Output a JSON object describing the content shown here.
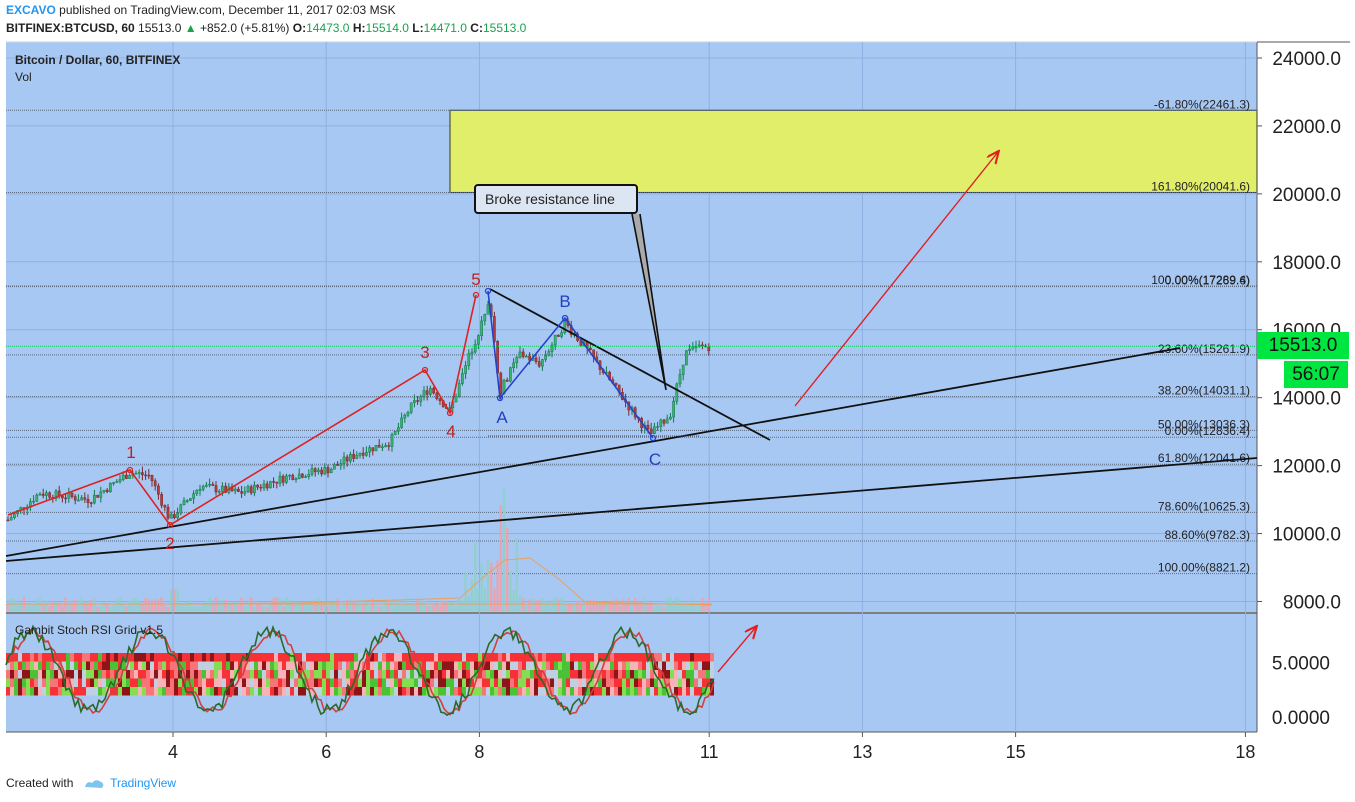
{
  "header": {
    "author": "EXCAVO",
    "published": "published on TradingView.com, December 11, 2017 02:03 MSK",
    "symbol": "BITFINEX:BTCUSD, 60",
    "last": "15513.0",
    "change": "+852.0 (+5.81%)",
    "o_label": "O:",
    "o": "14473.0",
    "h_label": "H:",
    "h": "15514.0",
    "l_label": "L:",
    "l": "14471.0",
    "c_label": "C:",
    "c": "15513.0"
  },
  "legend": {
    "title": "Bitcoin / Dollar, 60, BITFINEX",
    "vol": "Vol"
  },
  "indicator": {
    "name": "Gambit Stoch RSI Grid v1.5",
    "ticks": [
      "5.0000",
      "0.0000"
    ]
  },
  "footer": {
    "created": "Created with",
    "brand": "TradingView"
  },
  "price_badge": "15513.0",
  "time_badge": "56:07",
  "callout": "Broke resistance line",
  "colors": {
    "bg": "#a8c8f4",
    "up": "#26a69a",
    "down": "#ef5350",
    "accent": "#00e640",
    "zone": "#e0ee6a",
    "wave": "#dd2222",
    "abc": "#2244cc"
  },
  "chart_data": {
    "type": "candlestick",
    "x_ticks": [
      "4",
      "6",
      "8",
      "11",
      "13",
      "15",
      "18"
    ],
    "y_ticks": [
      "24000.0",
      "22000.0",
      "20000.0",
      "18000.0",
      "16000.0",
      "14000.0",
      "12000.0",
      "10000.0",
      "8000.0"
    ],
    "ylim": [
      7700,
      24300
    ],
    "fib_levels": [
      {
        "label": "-61.80%(22461.3)",
        "price": 22461.3
      },
      {
        "label": "161.80%(20041.6)",
        "price": 20041.6
      },
      {
        "label": "100.00%(17289.4)",
        "price": 17289.4
      },
      {
        "label": "0.00%(17269.6)",
        "price": 17269.6
      },
      {
        "label": "23.60%(15261.9)",
        "price": 15261.9
      },
      {
        "label": "38.20%(14031.1)",
        "price": 14031.1
      },
      {
        "label": "50.00%(13036.3)",
        "price": 13036.3
      },
      {
        "label": "0.00%(12836.4)",
        "price": 12836.4
      },
      {
        "label": "61.80%(12041.6)",
        "price": 12041.6
      },
      {
        "label": "78.60%(10625.3)",
        "price": 10625.3
      },
      {
        "label": "88.60%(9782.3)",
        "price": 9782.3
      },
      {
        "label": "100.00%(8821.2)",
        "price": 8821.2
      }
    ],
    "target_zone": [
      20041.6,
      22461.3
    ],
    "wave_labels": [
      {
        "label": "1",
        "price": 11850
      },
      {
        "label": "2",
        "price": 10250
      },
      {
        "label": "3",
        "price": 14800
      },
      {
        "label": "4",
        "price": 13500
      },
      {
        "label": "5",
        "price": 16900
      }
    ],
    "abc_labels": [
      {
        "label": "A",
        "price": 13900
      },
      {
        "label": "B",
        "price": 16250
      },
      {
        "label": "C",
        "price": 12750
      }
    ],
    "last_price": 15513.0
  }
}
